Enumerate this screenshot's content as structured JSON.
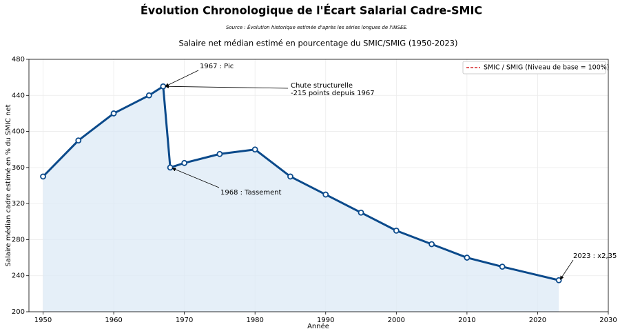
{
  "chart_data": {
    "type": "line",
    "title": "Évolution Chronologique de l'Écart Salarial Cadre-SMIC",
    "source": "Source : Évolution historique estimée d'après les séries longues de l'INSEE.",
    "subtitle": "Salaire net médian estimé en pourcentage du SMIC/SMIG (1950-2023)",
    "x_label": "Année",
    "y_label": "Salaire médian cadre estimé en % du SMIC net",
    "x": [
      1950,
      1955,
      1960,
      1965,
      1967,
      1968,
      1970,
      1975,
      1980,
      1985,
      1990,
      1995,
      2000,
      2005,
      2010,
      2015,
      2023
    ],
    "series": [
      {
        "name": "Salaire médian cadre",
        "color": "#0b4a8b",
        "fill": "#dce9f6",
        "values": [
          350,
          390,
          420,
          440,
          450,
          360,
          365,
          375,
          380,
          350,
          330,
          310,
          290,
          275,
          260,
          250,
          235
        ]
      }
    ],
    "legend": {
      "entries": [
        {
          "name": "SMIC / SMIG (Niveau de base = 100%)",
          "color": "#d62728",
          "style": "dashed"
        }
      ],
      "position": "upper right"
    },
    "annotations": [
      {
        "text": [
          "1967 : Pic"
        ]
      },
      {
        "text": [
          "Chute structurelle",
          "-215 points depuis 1967"
        ]
      },
      {
        "text": [
          "1968 : Tassement"
        ]
      },
      {
        "text": [
          "2023 : x2,35"
        ]
      }
    ],
    "xlim": [
      1948,
      2030
    ],
    "xticks": [
      1950,
      1960,
      1970,
      1980,
      1990,
      2000,
      2010,
      2020,
      2030
    ],
    "ylim": [
      200,
      480
    ],
    "yticks": [
      200,
      240,
      280,
      320,
      360,
      400,
      440,
      480
    ],
    "grid": true
  }
}
